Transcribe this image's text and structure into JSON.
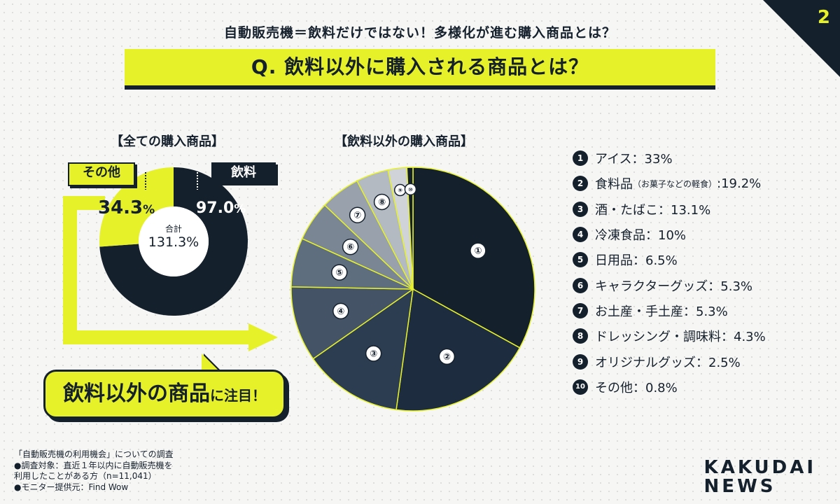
{
  "page_number": "2",
  "subtitle": "自動販売機＝飲料だけではない！多様化が進む購入商品とは？",
  "question": "Q. 飲料以外に購入される商品とは？",
  "left_section_title": "【全ての購入商品】",
  "right_section_title": "【飲料以外の購入商品】",
  "donut": {
    "tag_other": "その他",
    "tag_drink": "飲料",
    "other_value": "34.3",
    "other_unit": "%",
    "drink_value": "97.0",
    "drink_unit": "%",
    "center_label": "合計",
    "center_value": "131.3%"
  },
  "callout": {
    "main": "飲料以外の商品",
    "sub": "に注目！"
  },
  "chart_data": [
    {
      "type": "pie",
      "title": "【全ての購入商品】",
      "categories": [
        "飲料",
        "その他"
      ],
      "values": [
        97.0,
        34.3
      ],
      "total": 131.3
    },
    {
      "type": "pie",
      "title": "【飲料以外の購入商品】",
      "categories": [
        "①",
        "②",
        "③",
        "④",
        "⑤",
        "⑥",
        "⑦",
        "⑧",
        "⑨",
        "⑩"
      ],
      "values": [
        33,
        19.2,
        13.1,
        10,
        6.5,
        5.3,
        5.3,
        4.3,
        2.5,
        0.8
      ],
      "colors": [
        "#15202d",
        "#1d2c3f",
        "#2c3d52",
        "#445466",
        "#5f6e7e",
        "#7a8694",
        "#98a1ac",
        "#b3bac2",
        "#d0d4d9",
        "#15202d"
      ]
    }
  ],
  "legend": [
    {
      "num": "1",
      "text": "アイス：33%"
    },
    {
      "num": "2",
      "text": "食料品",
      "small": "（お菓子などの軽食）",
      "text2": ":19.2%"
    },
    {
      "num": "3",
      "text": "酒・たばこ：13.1%"
    },
    {
      "num": "4",
      "text": "冷凍食品：10%"
    },
    {
      "num": "5",
      "text": "日用品：6.5%"
    },
    {
      "num": "6",
      "text": "キャラクターグッズ：5.3%"
    },
    {
      "num": "7",
      "text": "お土産・手土産：5.3%"
    },
    {
      "num": "8",
      "text": "ドレッシング・調味料：4.3%"
    },
    {
      "num": "9",
      "text": "オリジナルグッズ：2.5%"
    },
    {
      "num": "10",
      "text": "その他：0.8%"
    }
  ],
  "footer": {
    "line1": "「自動販売機の利用機会」についての調査",
    "line2": "●調査対象：直近１年以内に自動販売機を",
    "line3": "利用したことがある方（n=11,041）",
    "line4": "●モニター提供元：Find Wow"
  },
  "logo": {
    "line1": "KAKUDAI",
    "line2": "NEWS"
  },
  "colors": {
    "accent": "#e6f12a",
    "navy": "#15202d"
  }
}
